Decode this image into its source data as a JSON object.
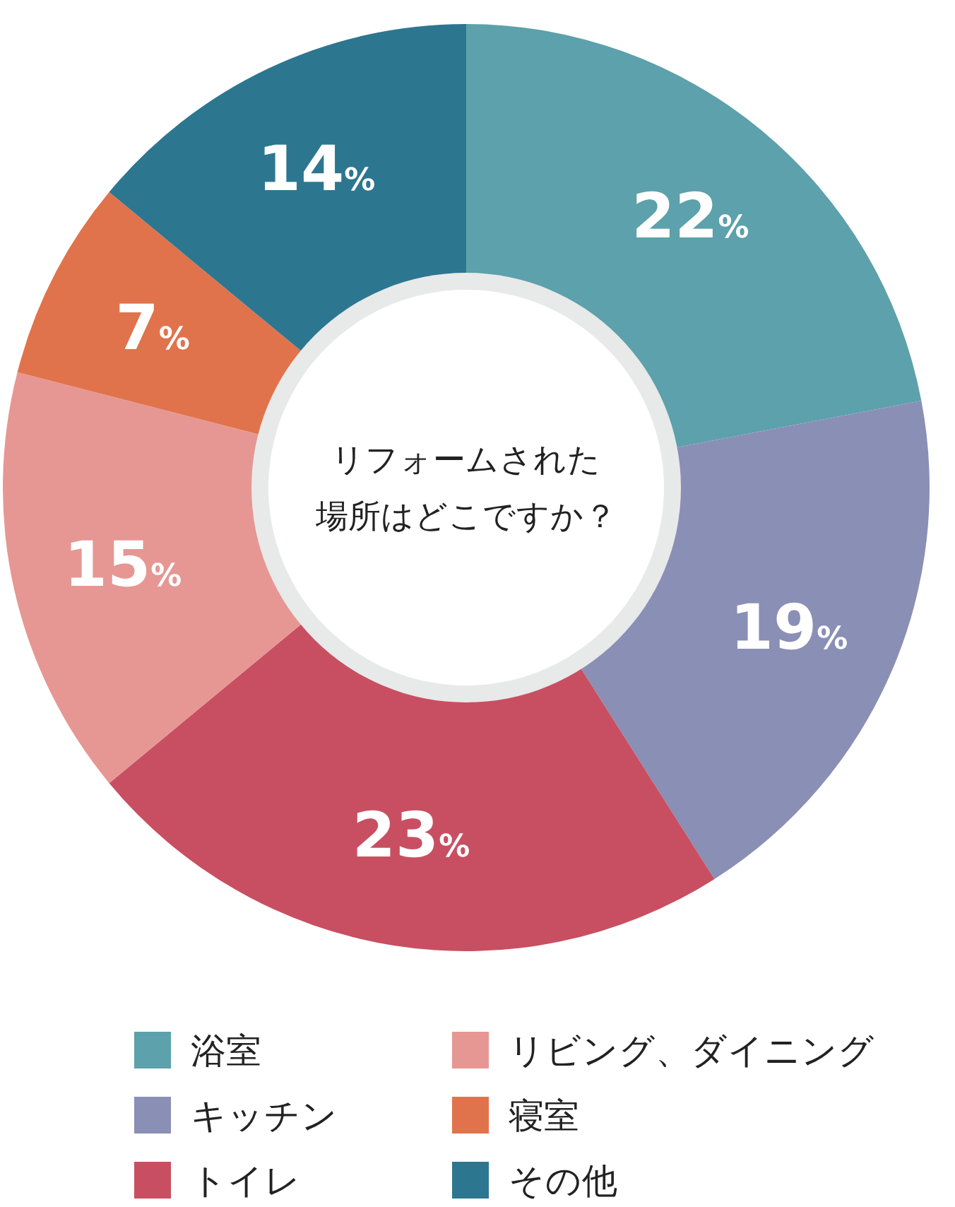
{
  "chart_data": {
    "type": "donut",
    "title": "リフォームされた場所はどこですか？",
    "value_labels": [
      "22%",
      "19%",
      "23%",
      "15%",
      "7%",
      "14%"
    ],
    "categories": [
      "浴室",
      "キッチン",
      "トイレ",
      "リビング、ダイニング",
      "寝室",
      "その他"
    ],
    "values": [
      22,
      19,
      23,
      15,
      7,
      14
    ],
    "colors": [
      "#5ca1ab",
      "#8a8fb6",
      "#c84f61",
      "#e69793",
      "#e0734b",
      "#2d7690"
    ],
    "legend": "bottom"
  }
}
